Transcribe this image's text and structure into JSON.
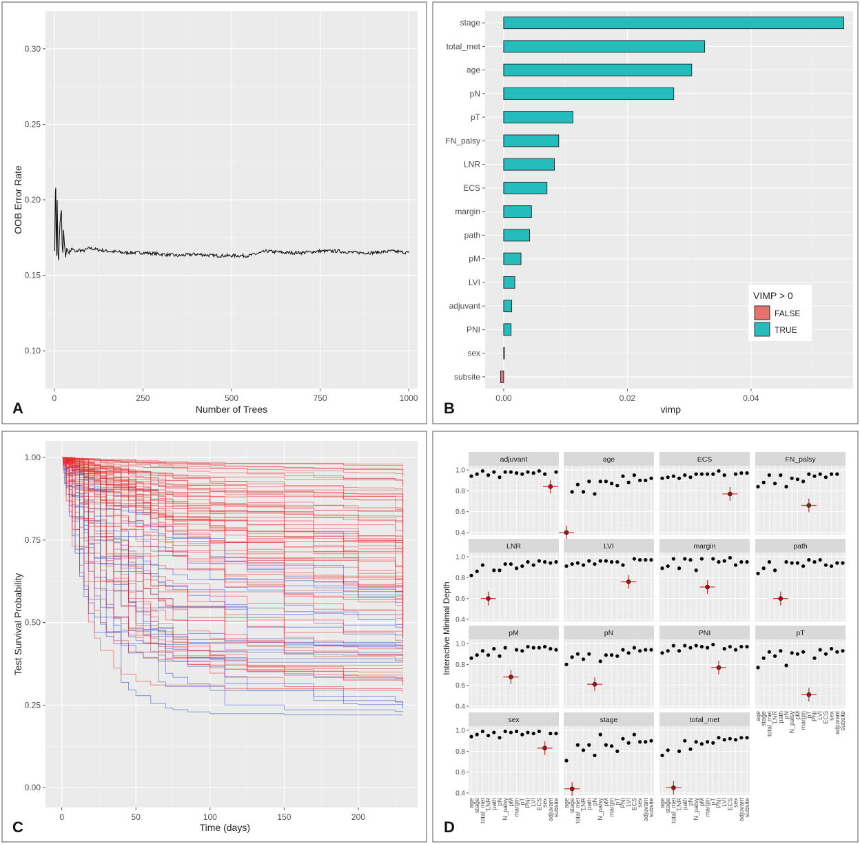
{
  "figure": {
    "panels": [
      "A",
      "B",
      "C",
      "D"
    ]
  },
  "chart_data": [
    {
      "panel": "A",
      "type": "line",
      "xlabel": "Number of Trees",
      "ylabel": "OOB Error Rate",
      "xlim": [
        0,
        1000
      ],
      "ylim": [
        0.075,
        0.325
      ],
      "xticks": [
        0,
        250,
        500,
        750,
        1000
      ],
      "yticks": [
        0.1,
        0.15,
        0.2,
        0.25,
        0.3
      ],
      "x": [
        1,
        2,
        3,
        4,
        5,
        6,
        8,
        10,
        12,
        14,
        16,
        18,
        20,
        22,
        24,
        26,
        28,
        30,
        32,
        35,
        40,
        45,
        50,
        60,
        70,
        80,
        100,
        120,
        150,
        200,
        250,
        300,
        350,
        400,
        450,
        500,
        550,
        600,
        650,
        700,
        750,
        800,
        850,
        900,
        950,
        1000
      ],
      "y": [
        0.166,
        0.19,
        0.205,
        0.208,
        0.18,
        0.163,
        0.2,
        0.165,
        0.16,
        0.175,
        0.185,
        0.19,
        0.193,
        0.17,
        0.165,
        0.18,
        0.172,
        0.167,
        0.162,
        0.168,
        0.165,
        0.166,
        0.168,
        0.165,
        0.167,
        0.166,
        0.168,
        0.167,
        0.166,
        0.165,
        0.165,
        0.164,
        0.163,
        0.164,
        0.163,
        0.163,
        0.163,
        0.166,
        0.165,
        0.165,
        0.166,
        0.166,
        0.165,
        0.165,
        0.166,
        0.165
      ]
    },
    {
      "panel": "B",
      "type": "bar",
      "orientation": "horizontal",
      "xlabel": "vimp",
      "xlim": [
        -0.0005,
        0.055
      ],
      "xticks": [
        0.0,
        0.02,
        0.04
      ],
      "xtick_labels": [
        "0.00",
        "0.02",
        "0.04"
      ],
      "categories": [
        "stage",
        "total_met",
        "age",
        "pN",
        "pT",
        "FN_palsy",
        "LNR",
        "ECS",
        "margin",
        "path",
        "pM",
        "LVI",
        "adjuvant",
        "PNI",
        "sex",
        "subsite"
      ],
      "values": [
        0.055,
        0.0325,
        0.0304,
        0.0275,
        0.0112,
        0.0089,
        0.0082,
        0.007,
        0.0045,
        0.0042,
        0.0028,
        0.0018,
        0.0013,
        0.0012,
        0.0001,
        -0.0005
      ],
      "legend": {
        "title": "VIMP > 0",
        "entries": [
          "FALSE",
          "TRUE"
        ],
        "position": "right"
      },
      "colors": {
        "TRUE": "#25bcbd",
        "FALSE": "#e6736b"
      }
    },
    {
      "panel": "C",
      "type": "line",
      "xlabel": "Time (days)",
      "ylabel": "Test Survival Probability",
      "xlim": [
        0,
        230
      ],
      "ylim": [
        0,
        1
      ],
      "xticks": [
        0,
        50,
        100,
        150,
        200
      ],
      "yticks": [
        0.0,
        0.25,
        0.5,
        0.75,
        1.0
      ],
      "ytick_labels": [
        "0.00",
        "0.25",
        "0.50",
        "0.75",
        "1.00"
      ],
      "n_red_curves": 70,
      "n_blue_curves": 22,
      "final_values": {
        "red": [
          0.98,
          0.97,
          0.96,
          0.95,
          0.94,
          0.93,
          0.92,
          0.91,
          0.9,
          0.89,
          0.88,
          0.87,
          0.86,
          0.85,
          0.84,
          0.83,
          0.82,
          0.81,
          0.8,
          0.79,
          0.78,
          0.77,
          0.76,
          0.75,
          0.74,
          0.73,
          0.72,
          0.71,
          0.7,
          0.69,
          0.68,
          0.67,
          0.66,
          0.65,
          0.64,
          0.63,
          0.62,
          0.61,
          0.6,
          0.59,
          0.58,
          0.57,
          0.56,
          0.55,
          0.54,
          0.53,
          0.52,
          0.51,
          0.5,
          0.49,
          0.48,
          0.47,
          0.46,
          0.45,
          0.44,
          0.43,
          0.42,
          0.41,
          0.4,
          0.39,
          0.38,
          0.37,
          0.36,
          0.35,
          0.34,
          0.33,
          0.32,
          0.31,
          0.3,
          0.29
        ],
        "blue": [
          0.58,
          0.56,
          0.52,
          0.5,
          0.49,
          0.48,
          0.47,
          0.46,
          0.45,
          0.44,
          0.43,
          0.42,
          0.41,
          0.4,
          0.39,
          0.38,
          0.33,
          0.26,
          0.25,
          0.24,
          0.23,
          0.22
        ]
      },
      "colors": {
        "high": "#e8292a",
        "low": "#3a4dcf"
      }
    },
    {
      "panel": "D",
      "type": "scatter",
      "ylabel": "Interactive Minimal Depth",
      "ylim": [
        0.38,
        1.04
      ],
      "yticks": [
        0.4,
        0.6,
        0.8,
        1.0
      ],
      "ytick_labels": [
        "0.4",
        "0.6",
        "0.8",
        "1.0"
      ],
      "variables": [
        "age",
        "stage",
        "total_met",
        "LNR",
        "path",
        "pN",
        "N_palsy",
        "pM",
        "margin",
        "pT",
        "PNI",
        "LVI",
        "ECS",
        "sex",
        "adjuvant",
        "subsite"
      ],
      "facets": [
        {
          "title": "adjuvant",
          "values": [
            0.94,
            0.96,
            0.99,
            0.95,
            0.98,
            0.93,
            0.98,
            0.98,
            0.97,
            0.96,
            0.98,
            0.97,
            0.99,
            0.96,
            0.98
          ],
          "mean": 0.84
        },
        {
          "title": "age",
          "values": [
            0.79,
            0.86,
            0.79,
            0.89,
            0.77,
            0.89,
            0.89,
            0.87,
            0.85,
            0.94,
            0.88,
            0.95,
            0.9,
            0.9,
            0.92
          ],
          "mean": 0.4
        },
        {
          "title": "ECS",
          "values": [
            0.92,
            0.93,
            0.94,
            0.92,
            0.95,
            0.93,
            0.96,
            0.96,
            0.96,
            0.96,
            0.99,
            0.95,
            0.96,
            0.97,
            0.97
          ],
          "mean": 0.77
        },
        {
          "title": "FN_palsy",
          "values": [
            0.84,
            0.88,
            0.95,
            0.87,
            0.95,
            0.84,
            0.92,
            0.91,
            0.89,
            0.96,
            0.94,
            0.96,
            0.93,
            0.96,
            0.96
          ],
          "mean": 0.66
        },
        {
          "title": "LNR",
          "values": [
            0.82,
            0.86,
            0.92,
            0.87,
            0.87,
            0.93,
            0.93,
            0.89,
            0.91,
            0.95,
            0.92,
            0.96,
            0.95,
            0.94,
            0.95
          ],
          "mean": 0.6
        },
        {
          "title": "LVI",
          "values": [
            0.91,
            0.93,
            0.94,
            0.92,
            0.96,
            0.93,
            0.96,
            0.96,
            0.95,
            0.95,
            0.92,
            0.98,
            0.97,
            0.97,
            0.97
          ],
          "mean": 0.76
        },
        {
          "title": "margin",
          "values": [
            0.89,
            0.91,
            0.98,
            0.89,
            0.98,
            0.97,
            0.87,
            0.98,
            0.98,
            0.95,
            0.96,
            0.99,
            0.92,
            0.95,
            0.95
          ],
          "mean": 0.71
        },
        {
          "title": "path",
          "values": [
            0.84,
            0.89,
            0.95,
            0.87,
            0.95,
            0.94,
            0.94,
            0.91,
            0.97,
            0.95,
            0.97,
            0.92,
            0.91,
            0.94,
            0.94
          ],
          "mean": 0.6
        },
        {
          "title": "pM",
          "values": [
            0.86,
            0.89,
            0.93,
            0.89,
            0.95,
            0.88,
            0.96,
            0.94,
            0.93,
            0.97,
            0.96,
            0.96,
            0.97,
            0.95,
            0.94
          ],
          "mean": 0.68
        },
        {
          "title": "pN",
          "values": [
            0.8,
            0.87,
            0.9,
            0.85,
            0.9,
            0.83,
            0.89,
            0.89,
            0.88,
            0.94,
            0.91,
            0.96,
            0.93,
            0.94,
            0.94
          ],
          "mean": 0.61
        },
        {
          "title": "PNI",
          "values": [
            0.91,
            0.93,
            0.98,
            0.93,
            0.98,
            0.96,
            0.98,
            0.97,
            0.96,
            0.99,
            0.95,
            0.97,
            0.94,
            0.97,
            0.97
          ],
          "mean": 0.77
        },
        {
          "title": "pT",
          "values": [
            0.77,
            0.86,
            0.92,
            0.88,
            0.93,
            0.79,
            0.91,
            0.9,
            0.92,
            0.86,
            0.94,
            0.9,
            0.95,
            0.92,
            0.93
          ],
          "mean": 0.51
        },
        {
          "title": "sex",
          "values": [
            0.94,
            0.96,
            0.99,
            0.95,
            0.98,
            0.93,
            0.99,
            0.98,
            0.99,
            0.96,
            0.98,
            0.97,
            0.99,
            0.97,
            0.97
          ],
          "mean": 0.83
        },
        {
          "title": "stage",
          "values": [
            0.71,
            0.86,
            0.81,
            0.86,
            0.76,
            0.96,
            0.86,
            0.85,
            0.8,
            0.92,
            0.88,
            0.96,
            0.89,
            0.89,
            0.9
          ],
          "mean": 0.44
        },
        {
          "title": "total_met",
          "values": [
            0.76,
            0.81,
            0.8,
            0.9,
            0.82,
            0.89,
            0.87,
            0.89,
            0.88,
            0.93,
            0.91,
            0.92,
            0.91,
            0.93,
            0.93
          ],
          "mean": 0.45
        }
      ],
      "colors": {
        "point": "#000000",
        "mean_cross": "#d23a2e",
        "mean_point": "#a31515"
      }
    }
  ]
}
